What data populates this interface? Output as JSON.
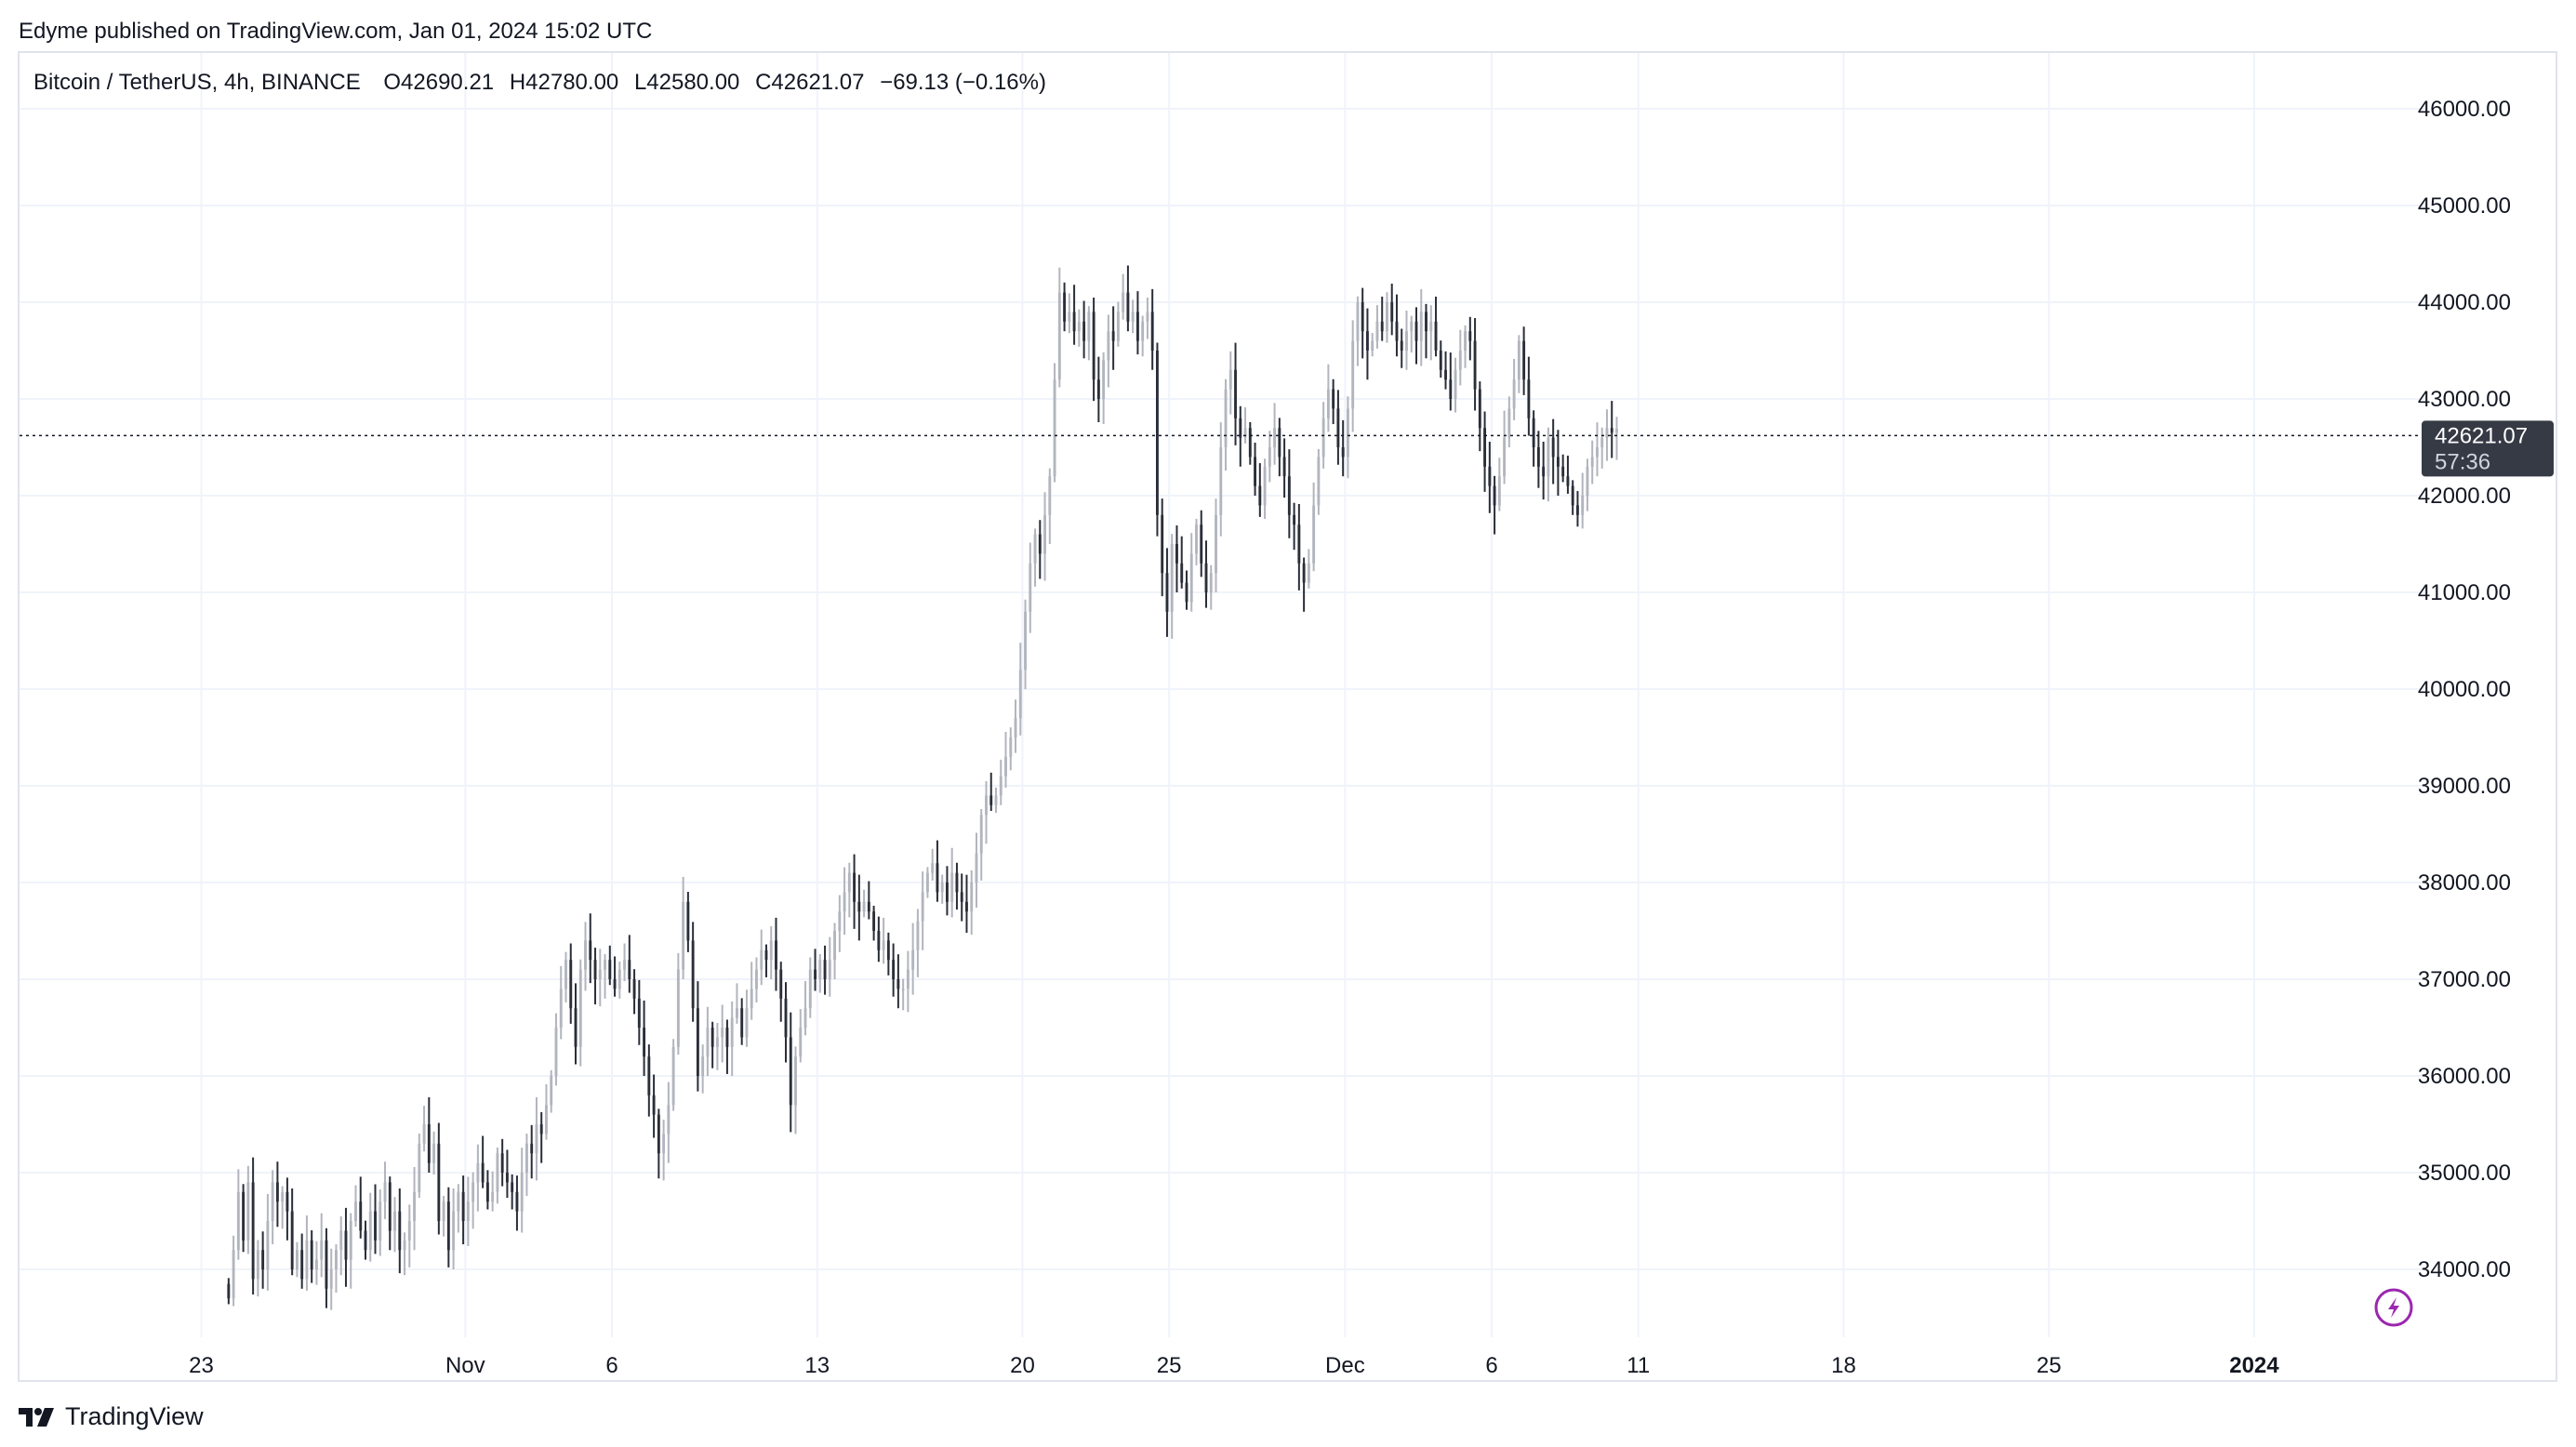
{
  "header": {
    "publisher_line": "Edyme published on TradingView.com, Jan 01, 2024 15:02 UTC"
  },
  "legend": {
    "symbol": "Bitcoin / TetherUS, 4h, BINANCE",
    "open": "O42690.21",
    "high": "H42780.00",
    "low": "L42580.00",
    "close": "C42621.07",
    "change": "−69.13 (−0.16%)"
  },
  "price_tag": {
    "price": "42621.07",
    "countdown": "57:36"
  },
  "footer": {
    "brand": "TradingView"
  },
  "icons": {
    "logo": "tradingview-logo-icon",
    "lightning": "lightning-icon"
  },
  "colors": {
    "background": "#ffffff",
    "grid": "#f0f3fa",
    "up_candle": "#b2b5be",
    "down_candle": "#2a2e39",
    "price_tag_bg": "#363a45",
    "price_tag_text": "#ffffff",
    "lightning_icon": "#9c27b0"
  },
  "chart_data": {
    "type": "candlestick",
    "title": "Bitcoin / TetherUS, 4h, BINANCE",
    "xlabel": "",
    "ylabel": "",
    "grid": true,
    "ylim": [
      33200,
      46500
    ],
    "y_ticks": [
      "46000.00",
      "45000.00",
      "44000.00",
      "43000.00",
      "42000.00",
      "41000.00",
      "40000.00",
      "39000.00",
      "38000.00",
      "37000.00",
      "36000.00",
      "35000.00",
      "34000.00"
    ],
    "x_ticks": [
      {
        "label": "23",
        "day": 0
      },
      {
        "label": "Nov",
        "day": 9
      },
      {
        "label": "6",
        "day": 14
      },
      {
        "label": "13",
        "day": 21
      },
      {
        "label": "20",
        "day": 28
      },
      {
        "label": "25",
        "day": 33
      },
      {
        "label": "Dec",
        "day": 39
      },
      {
        "label": "6",
        "day": 44
      },
      {
        "label": "11",
        "day": 49
      },
      {
        "label": "18",
        "day": 56
      },
      {
        "label": "25",
        "day": 63
      },
      {
        "label": "2024",
        "day": 70,
        "bold": true
      }
    ],
    "x_range_days": [
      -6.2,
      75.9
    ],
    "first_day": 0.93,
    "bars_per_day": 6,
    "last_close": 42621.07,
    "closes": [
      33700,
      34200,
      34800,
      34300,
      34900,
      33900,
      34200,
      34000,
      34500,
      34900,
      34700,
      34800,
      34600,
      34000,
      34200,
      33900,
      34300,
      34000,
      34100,
      34300,
      33800,
      34000,
      34200,
      34400,
      34100,
      34500,
      34700,
      34400,
      34200,
      34600,
      34300,
      34700,
      34900,
      34400,
      34600,
      34200,
      34300,
      34500,
      34800,
      35300,
      35500,
      35100,
      35300,
      34500,
      34700,
      34200,
      34600,
      34800,
      34500,
      34700,
      34900,
      35100,
      34900,
      34700,
      34800,
      35200,
      35000,
      34900,
      34800,
      34600,
      35000,
      35300,
      35200,
      35500,
      35400,
      35700,
      36000,
      36500,
      36900,
      37200,
      36700,
      36300,
      37100,
      37400,
      37200,
      37000,
      37100,
      37200,
      37000,
      36900,
      37100,
      37200,
      37000,
      36800,
      36500,
      36200,
      35800,
      35600,
      35200,
      35400,
      35700,
      36300,
      37100,
      37800,
      37400,
      36700,
      36000,
      36200,
      36500,
      36300,
      36400,
      36500,
      36300,
      36600,
      36700,
      36400,
      36700,
      36900,
      37100,
      37300,
      37200,
      37400,
      37100,
      36800,
      36400,
      35700,
      36200,
      36500,
      36700,
      37100,
      37000,
      37200,
      37000,
      37200,
      37500,
      37700,
      37900,
      38100,
      37800,
      37700,
      37800,
      37700,
      37500,
      37300,
      37400,
      37200,
      37000,
      36900,
      36900,
      37100,
      37300,
      37600,
      37900,
      38100,
      38200,
      37900,
      38000,
      37800,
      38100,
      37900,
      37800,
      37700,
      38000,
      38300,
      38700,
      38900,
      38800,
      38900,
      39100,
      39300,
      39500,
      39700,
      40200,
      40800,
      41300,
      41600,
      41400,
      41800,
      42200,
      43200,
      44100,
      43800,
      43900,
      43700,
      43800,
      43600,
      43900,
      43200,
      43000,
      43400,
      43700,
      43600,
      43900,
      44100,
      43800,
      43900,
      43600,
      43800,
      43900,
      43500,
      41800,
      41200,
      40800,
      41500,
      41300,
      41100,
      40900,
      41400,
      41700,
      41300,
      41000,
      41200,
      41800,
      42500,
      43100,
      43300,
      42800,
      42600,
      42700,
      42400,
      42100,
      41900,
      42300,
      42500,
      42700,
      42400,
      42200,
      41800,
      41700,
      41300,
      41100,
      41300,
      41900,
      42400,
      42800,
      43100,
      42900,
      42500,
      42400,
      42900,
      43600,
      44000,
      43700,
      43500,
      43600,
      43800,
      43700,
      44000,
      43800,
      43600,
      43500,
      43700,
      43800,
      43600,
      43900,
      43700,
      43800,
      43500,
      43300,
      43200,
      43000,
      43300,
      43500,
      43700,
      43600,
      43100,
      42700,
      42300,
      42100,
      41900,
      42200,
      42600,
      42900,
      43200,
      43600,
      43200,
      42800,
      42500,
      42300,
      42200,
      42600,
      42400,
      42300,
      42200,
      42100,
      41900,
      41800,
      42000,
      42300,
      42400,
      42500,
      42600,
      42700,
      42650,
      42690.21
    ]
  }
}
